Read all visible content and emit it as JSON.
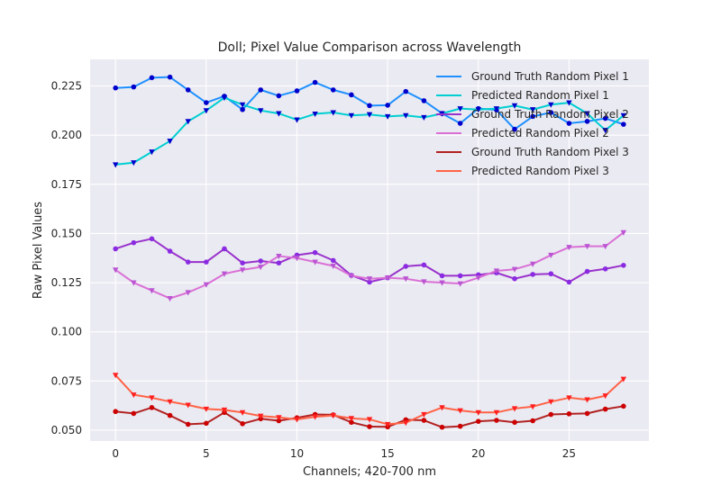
{
  "chart_data": {
    "type": "line",
    "title": "Doll; Pixel Value Comparison across Wavelength",
    "xlabel": "Channels; 420-700 nm",
    "ylabel": "Raw Pixel Values",
    "xlim": [
      -1.4,
      29.4
    ],
    "ylim": [
      0.0445,
      0.2385
    ],
    "xticks": [
      0,
      5,
      10,
      15,
      20,
      25
    ],
    "yticks": [
      0.05,
      0.075,
      0.1,
      0.125,
      0.15,
      0.175,
      0.2,
      0.225
    ],
    "ytick_labels": [
      "0.050",
      "0.075",
      "0.100",
      "0.125",
      "0.150",
      "0.175",
      "0.200",
      "0.225"
    ],
    "grid": true,
    "legend_position": "top-right",
    "x": [
      0,
      1,
      2,
      3,
      4,
      5,
      6,
      7,
      8,
      9,
      10,
      11,
      12,
      13,
      14,
      15,
      16,
      17,
      18,
      19,
      20,
      21,
      22,
      23,
      24,
      25,
      26,
      27,
      28
    ],
    "series": [
      {
        "name": "Ground Truth Random Pixel 1",
        "color": "#1e90ff",
        "marker_color": "#0000cd",
        "marker": "circle",
        "values": [
          0.224,
          0.2245,
          0.2292,
          0.2295,
          0.223,
          0.2165,
          0.2198,
          0.213,
          0.223,
          0.22,
          0.2225,
          0.2268,
          0.223,
          0.2205,
          0.215,
          0.2152,
          0.2222,
          0.2175,
          0.211,
          0.206,
          0.2135,
          0.2128,
          0.203,
          0.2095,
          0.2115,
          0.206,
          0.207,
          0.2085,
          0.2055
        ]
      },
      {
        "name": "Predicted Random Pixel 1",
        "color": "#00ced1",
        "marker_color": "#0000cd",
        "marker": "triangle-down",
        "values": [
          0.185,
          0.186,
          0.1915,
          0.197,
          0.207,
          0.2125,
          0.219,
          0.2155,
          0.2125,
          0.211,
          0.2078,
          0.2108,
          0.2115,
          0.21,
          0.2105,
          0.2095,
          0.21,
          0.209,
          0.211,
          0.2135,
          0.213,
          0.2135,
          0.215,
          0.213,
          0.2155,
          0.2165,
          0.211,
          0.2025,
          0.21
        ]
      },
      {
        "name": "Ground Truth Random Pixel 2",
        "color": "#9932cc",
        "marker_color": "#8a2be2",
        "marker": "circle",
        "values": [
          0.1422,
          0.1453,
          0.1473,
          0.141,
          0.1355,
          0.1355,
          0.1422,
          0.135,
          0.136,
          0.135,
          0.139,
          0.1403,
          0.1363,
          0.1287,
          0.1253,
          0.1275,
          0.1333,
          0.134,
          0.1285,
          0.1285,
          0.129,
          0.13,
          0.127,
          0.1292,
          0.1295,
          0.1253,
          0.1307,
          0.132,
          0.1338
        ]
      },
      {
        "name": "Predicted Random Pixel 2",
        "color": "#da70d6",
        "marker_color": "#ba55d3",
        "marker": "triangle-down",
        "values": [
          0.1315,
          0.125,
          0.121,
          0.117,
          0.12,
          0.124,
          0.1295,
          0.1315,
          0.133,
          0.1385,
          0.1375,
          0.1355,
          0.1335,
          0.1285,
          0.127,
          0.1275,
          0.127,
          0.1255,
          0.125,
          0.1245,
          0.1275,
          0.131,
          0.1318,
          0.1345,
          0.139,
          0.143,
          0.1435,
          0.1435,
          0.1505
        ]
      },
      {
        "name": "Ground Truth Random Pixel 3",
        "color": "#b22222",
        "marker_color": "#cc0000",
        "marker": "circle",
        "values": [
          0.0595,
          0.0585,
          0.0615,
          0.0575,
          0.053,
          0.0535,
          0.059,
          0.0533,
          0.0558,
          0.0548,
          0.0563,
          0.058,
          0.0578,
          0.054,
          0.0518,
          0.0517,
          0.0553,
          0.055,
          0.0515,
          0.052,
          0.0545,
          0.055,
          0.054,
          0.0548,
          0.058,
          0.0583,
          0.0585,
          0.0607,
          0.0622
        ]
      },
      {
        "name": "Predicted Random Pixel 3",
        "color": "#ff6347",
        "marker_color": "#ff2020",
        "marker": "triangle-down",
        "values": [
          0.078,
          0.068,
          0.0665,
          0.0645,
          0.0628,
          0.0608,
          0.0603,
          0.059,
          0.0572,
          0.0565,
          0.0555,
          0.0568,
          0.0575,
          0.056,
          0.0555,
          0.053,
          0.0538,
          0.058,
          0.0615,
          0.06,
          0.059,
          0.059,
          0.061,
          0.062,
          0.0645,
          0.0665,
          0.0655,
          0.0675,
          0.076
        ]
      }
    ]
  }
}
